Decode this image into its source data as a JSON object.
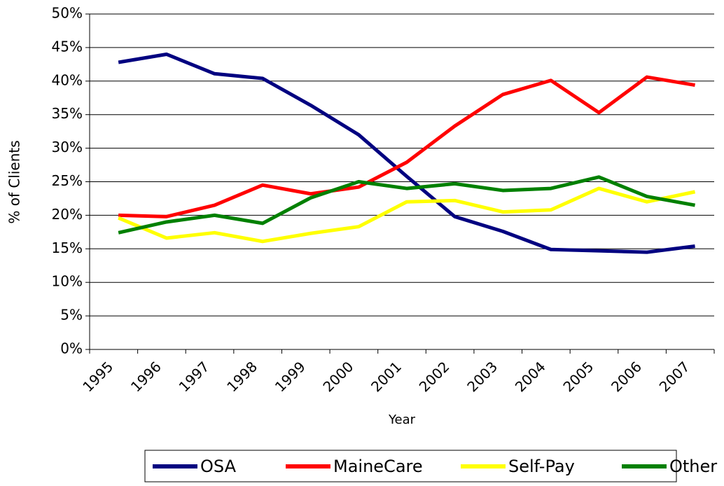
{
  "chart_data": {
    "type": "line",
    "x_label": "Year",
    "y_label": "% of Clients",
    "categories": [
      "1995",
      "1996",
      "1997",
      "1998",
      "1999",
      "2000",
      "2001",
      "2002",
      "2003",
      "2004",
      "2005",
      "2006",
      "2007"
    ],
    "series": [
      {
        "name": "OSA",
        "color": "#000080",
        "values": [
          42.8,
          44.0,
          41.1,
          40.4,
          36.4,
          32.0,
          25.8,
          19.8,
          17.6,
          14.9,
          14.7,
          14.5,
          15.4
        ]
      },
      {
        "name": "MaineCare",
        "color": "#ff0000",
        "values": [
          20.0,
          19.8,
          21.5,
          24.5,
          23.2,
          24.2,
          27.9,
          33.3,
          38.0,
          40.1,
          35.3,
          40.6,
          39.4
        ]
      },
      {
        "name": "Self-Pay",
        "color": "#ffff00",
        "values": [
          19.6,
          16.6,
          17.4,
          16.1,
          17.3,
          18.3,
          22.0,
          22.2,
          20.5,
          20.8,
          24.0,
          22.0,
          23.5
        ]
      },
      {
        "name": "Other",
        "color": "#008000",
        "values": [
          17.4,
          19.0,
          20.0,
          18.8,
          22.6,
          25.0,
          24.0,
          24.7,
          23.7,
          24.0,
          25.7,
          22.8,
          21.5
        ]
      }
    ],
    "ylim": [
      0,
      50
    ],
    "yticks": [
      {
        "value": 0,
        "label": "0%"
      },
      {
        "value": 5,
        "label": "5%"
      },
      {
        "value": 10,
        "label": "10%"
      },
      {
        "value": 15,
        "label": "15%"
      },
      {
        "value": 20,
        "label": "20%"
      },
      {
        "value": 25,
        "label": "25%"
      },
      {
        "value": 30,
        "label": "30%"
      },
      {
        "value": 35,
        "label": "35%"
      },
      {
        "value": 40,
        "label": "40%"
      },
      {
        "value": 45,
        "label": "45%"
      },
      {
        "value": 50,
        "label": "50%"
      }
    ],
    "grid": true,
    "legend": "bottom"
  }
}
